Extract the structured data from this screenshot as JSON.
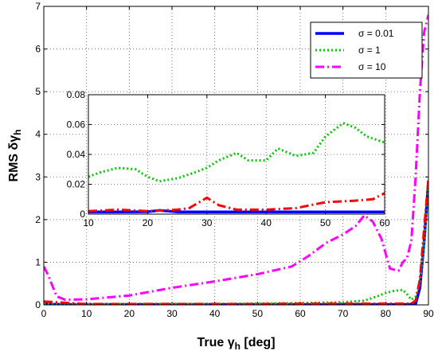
{
  "chart_data": [
    {
      "id": "main",
      "type": "line",
      "xlabel": "True γh [deg]",
      "xlabel_parts": {
        "main": "True γ",
        "sub": "h",
        "unit": " [deg]"
      },
      "ylabel": "RMS δγh",
      "ylabel_parts": {
        "main": "RMS δγ",
        "sub": "h"
      },
      "xlim": [
        0,
        90
      ],
      "ylim": [
        0,
        7
      ],
      "xticks": [
        0,
        10,
        20,
        30,
        40,
        50,
        60,
        70,
        80,
        90
      ],
      "yticks": [
        0,
        1,
        2,
        3,
        4,
        5,
        6,
        7
      ],
      "grid": true,
      "legend_position": "top-right",
      "series": [
        {
          "name": "σ = 0.01",
          "color": "#0000ff",
          "style": "solid",
          "x": [
            0,
            5,
            10,
            20,
            30,
            40,
            50,
            60,
            70,
            80,
            85,
            87,
            88,
            89,
            90
          ],
          "y": [
            0.02,
            0.01,
            0.01,
            0.01,
            0.01,
            0.01,
            0.01,
            0.01,
            0.01,
            0.01,
            0.01,
            0.02,
            0.4,
            1.5,
            2.9
          ]
        },
        {
          "name": "σ = 1",
          "color": "#00cc00",
          "style": "dotted",
          "x": [
            0,
            5,
            10,
            20,
            30,
            40,
            50,
            60,
            70,
            75,
            78,
            80,
            82,
            84,
            85,
            86,
            87,
            88,
            89,
            90
          ],
          "y": [
            0.02,
            0.01,
            0.01,
            0.02,
            0.02,
            0.02,
            0.03,
            0.04,
            0.06,
            0.1,
            0.2,
            0.28,
            0.33,
            0.35,
            0.25,
            0.12,
            0.2,
            0.5,
            1.5,
            2.8
          ]
        },
        {
          "name": "σ = 10",
          "color": "#ff00ff",
          "style": "dashdot",
          "x": [
            0,
            1,
            3,
            5,
            10,
            20,
            30,
            40,
            50,
            58,
            62,
            66,
            70,
            73,
            75,
            77,
            79,
            80,
            81,
            83,
            84,
            85,
            86,
            87,
            88,
            89,
            90
          ],
          "y": [
            0.9,
            0.7,
            0.2,
            0.12,
            0.13,
            0.22,
            0.4,
            0.55,
            0.72,
            0.9,
            1.15,
            1.45,
            1.65,
            1.85,
            2.1,
            1.95,
            1.55,
            1.2,
            0.85,
            0.8,
            1.0,
            1.1,
            1.5,
            3.0,
            5.0,
            6.4,
            6.8
          ]
        },
        {
          "name": "",
          "color": "#ff0000",
          "style": "dashdot",
          "x": [
            0,
            10,
            20,
            30,
            40,
            50,
            60,
            70,
            80,
            86,
            87,
            88,
            89,
            90
          ],
          "y": [
            0.08,
            0.02,
            0.02,
            0.02,
            0.02,
            0.02,
            0.03,
            0.03,
            0.03,
            0.03,
            0.1,
            0.6,
            1.8,
            2.95
          ]
        }
      ]
    },
    {
      "id": "inset",
      "type": "line",
      "xlim": [
        10,
        60
      ],
      "ylim": [
        0,
        0.08
      ],
      "xticks": [
        10,
        20,
        30,
        40,
        50,
        60
      ],
      "yticks": [
        0,
        0.02,
        0.04,
        0.06,
        0.08
      ],
      "ytick_labels": [
        "0",
        "0.02",
        "0.04",
        "0.06",
        "0.08"
      ],
      "grid": true,
      "series": [
        {
          "name": "σ = 0.01",
          "color": "#0000ff",
          "style": "solid",
          "x": [
            10,
            15,
            20,
            22,
            25,
            30,
            35,
            40,
            45,
            50,
            55,
            60
          ],
          "y": [
            0.0015,
            0.0015,
            0.0016,
            0.0025,
            0.0015,
            0.0015,
            0.0015,
            0.0015,
            0.0015,
            0.0015,
            0.0015,
            0.0015
          ]
        },
        {
          "name": "σ = 1",
          "color": "#00cc00",
          "style": "dotted",
          "x": [
            10,
            12,
            15,
            18,
            20,
            22,
            25,
            28,
            30,
            32,
            35,
            37,
            40,
            42,
            45,
            48,
            50,
            53,
            55,
            57,
            60
          ],
          "y": [
            0.025,
            0.028,
            0.031,
            0.03,
            0.025,
            0.022,
            0.024,
            0.028,
            0.031,
            0.036,
            0.041,
            0.036,
            0.036,
            0.044,
            0.039,
            0.041,
            0.052,
            0.061,
            0.058,
            0.052,
            0.048
          ]
        },
        {
          "name": "",
          "color": "#ff0000",
          "style": "dashdot",
          "x": [
            10,
            15,
            20,
            25,
            27,
            30,
            32,
            35,
            40,
            45,
            50,
            55,
            58,
            60
          ],
          "y": [
            0.002,
            0.003,
            0.002,
            0.003,
            0.004,
            0.011,
            0.006,
            0.003,
            0.003,
            0.004,
            0.008,
            0.009,
            0.01,
            0.014
          ]
        }
      ]
    }
  ]
}
